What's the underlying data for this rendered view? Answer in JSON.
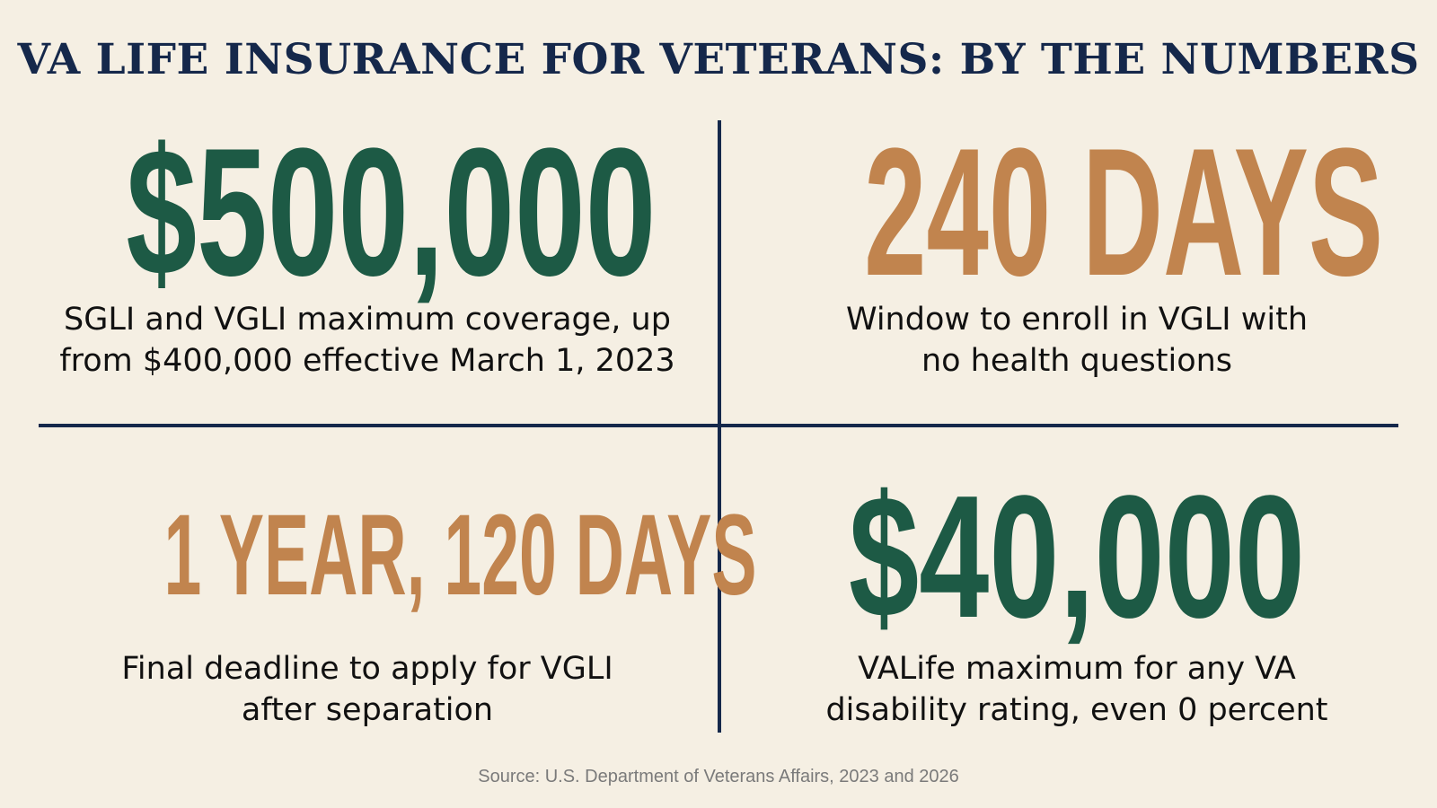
{
  "title": "VA LIFE INSURANCE FOR VETERANS: BY THE NUMBERS",
  "stats": [
    {
      "value": "$500,000",
      "desc_line1": "SGLI and VGLI maximum coverage, up",
      "desc_line2": "from $400,000 effective March 1, 2023",
      "color": "#1d5a45"
    },
    {
      "value": "240 DAYS",
      "desc_line1": "Window to enroll in VGLI with",
      "desc_line2": "no health questions",
      "color": "#c1844e"
    },
    {
      "value": "1 YEAR, 120 DAYS",
      "desc_line1": "Final deadline to apply for VGLI",
      "desc_line2": "after separation",
      "color": "#c1844e"
    },
    {
      "value": "$40,000",
      "desc_line1": "VALife maximum for any VA",
      "desc_line2": "disability rating, even 0 percent",
      "color": "#1d5a45"
    }
  ],
  "source": "Source: U.S. Department of Veterans Affairs, 2023 and 2026",
  "colors": {
    "background": "#f5efe3",
    "navy": "#15284b",
    "green": "#1d5a45",
    "orange": "#c1844e"
  }
}
